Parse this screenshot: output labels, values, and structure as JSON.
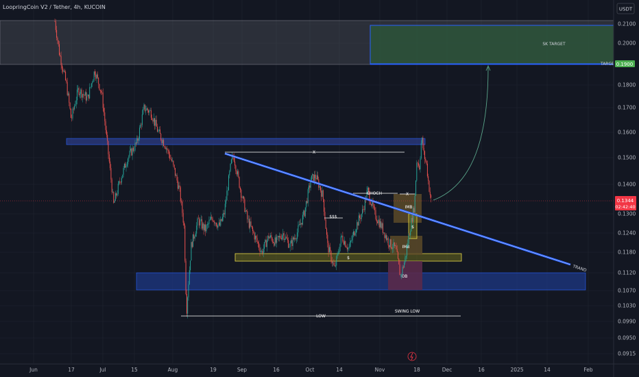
{
  "header": {
    "symbol": "LoopringCoin V2 / Tether, 4h, KUCOIN",
    "currency_button": "USDT"
  },
  "chart_data": {
    "type": "candlestick",
    "title": "LoopringCoin V2 / Tether, 4h, KUCOIN",
    "ylim": [
      0.09,
      0.215
    ],
    "y_scale": "log",
    "y_ticks": [
      "0.2100",
      "0.2000",
      "0.1800",
      "0.1700",
      "0.1600",
      "0.1500",
      "0.1400",
      "0.1300",
      "0.1240",
      "0.1180",
      "0.1120",
      "0.1070",
      "0.1030",
      "0.0990",
      "0.0950",
      "0.0915"
    ],
    "x_ticks": [
      "Jun",
      "17",
      "Jul",
      "15",
      "Aug",
      "19",
      "Sep",
      "16",
      "Oct",
      "14",
      "Nov",
      "18",
      "Dec",
      "16",
      "2025",
      "14",
      "Feb"
    ],
    "grid": true,
    "price_path": [
      [
        "2024-06-09",
        0.22
      ],
      [
        "2024-06-12",
        0.195
      ],
      [
        "2024-06-15",
        0.18
      ],
      [
        "2024-06-17",
        0.165
      ],
      [
        "2024-06-20",
        0.178
      ],
      [
        "2024-06-24",
        0.174
      ],
      [
        "2024-06-27",
        0.187
      ],
      [
        "2024-06-30",
        0.176
      ],
      [
        "2024-07-02",
        0.158
      ],
      [
        "2024-07-05",
        0.133
      ],
      [
        "2024-07-08",
        0.142
      ],
      [
        "2024-07-11",
        0.15
      ],
      [
        "2024-07-15",
        0.156
      ],
      [
        "2024-07-18",
        0.17
      ],
      [
        "2024-07-21",
        0.168
      ],
      [
        "2024-07-24",
        0.16
      ],
      [
        "2024-07-27",
        0.155
      ],
      [
        "2024-07-30",
        0.148
      ],
      [
        "2024-08-02",
        0.138
      ],
      [
        "2024-08-04",
        0.126
      ],
      [
        "2024-08-05",
        0.101
      ],
      [
        "2024-08-07",
        0.12
      ],
      [
        "2024-08-10",
        0.128
      ],
      [
        "2024-08-13",
        0.125
      ],
      [
        "2024-08-16",
        0.129
      ],
      [
        "2024-08-19",
        0.126
      ],
      [
        "2024-08-21",
        0.13
      ],
      [
        "2024-08-24",
        0.148
      ],
      [
        "2024-08-25",
        0.151
      ],
      [
        "2024-08-28",
        0.138
      ],
      [
        "2024-08-31",
        0.128
      ],
      [
        "2024-09-03",
        0.123
      ],
      [
        "2024-09-06",
        0.118
      ],
      [
        "2024-09-09",
        0.123
      ],
      [
        "2024-09-12",
        0.121
      ],
      [
        "2024-09-15",
        0.124
      ],
      [
        "2024-09-18",
        0.12
      ],
      [
        "2024-09-21",
        0.124
      ],
      [
        "2024-09-24",
        0.13
      ],
      [
        "2024-09-27",
        0.142
      ],
      [
        "2024-09-29",
        0.143
      ],
      [
        "2024-10-02",
        0.136
      ],
      [
        "2024-10-04",
        0.12
      ],
      [
        "2024-10-07",
        0.113
      ],
      [
        "2024-10-10",
        0.123
      ],
      [
        "2024-10-13",
        0.119
      ],
      [
        "2024-10-16",
        0.126
      ],
      [
        "2024-10-19",
        0.131
      ],
      [
        "2024-10-21",
        0.138
      ],
      [
        "2024-10-24",
        0.13
      ],
      [
        "2024-10-27",
        0.126
      ],
      [
        "2024-10-30",
        0.121
      ],
      [
        "2024-11-02",
        0.119
      ],
      [
        "2024-11-04",
        0.111
      ],
      [
        "2024-11-06",
        0.116
      ],
      [
        "2024-11-08",
        0.125
      ],
      [
        "2024-11-10",
        0.133
      ],
      [
        "2024-11-11",
        0.15
      ],
      [
        "2024-11-12",
        0.146
      ],
      [
        "2024-11-13",
        0.158
      ],
      [
        "2024-11-14",
        0.151
      ],
      [
        "2024-11-15",
        0.148
      ],
      [
        "2024-11-16",
        0.14
      ],
      [
        "2024-11-17",
        0.1344
      ]
    ],
    "current_price": "0.1344",
    "countdown": "02:42:40",
    "target_price": "0.1900",
    "annotations": {
      "target_zone_label": "SK TARGET",
      "target_line_label": "TARGET",
      "choch": "CHOCH",
      "x_top": "X",
      "x_small": "X",
      "sss": "$$$",
      "s_range": "$",
      "s_small": "$",
      "imb_1": "IMB",
      "imb_2": "IMB",
      "ob": "OB",
      "trend": "TRAND",
      "low": "LOW",
      "swing_low": "SWING LOW"
    },
    "colors": {
      "background": "#131722",
      "up": "#26a69a",
      "down": "#ef5350",
      "trendline": "#2962ff",
      "resistance_zone": "#2a3a80",
      "support_zone": "#1e3a8a",
      "range_zone": "#6b6a1e",
      "target_zone": "#2e5a3a",
      "target_label_bg": "#4caf50",
      "price_label_bg": "#f23645",
      "imb_zone": "#5c4a28",
      "ob_zone": "#5a2a4a"
    }
  }
}
